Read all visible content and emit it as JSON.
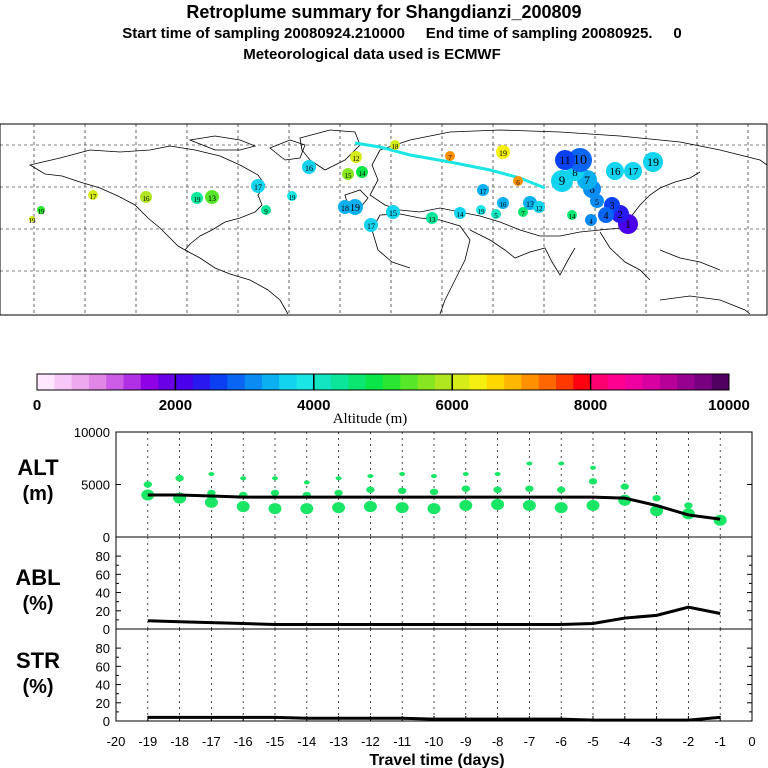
{
  "header": {
    "title": "Retroplume summary for Shangdianzi_200809",
    "sampling_line": "Start time of sampling 20080924.210000     End time of sampling 20080925.     0",
    "met_line": "Meteorological data used is ECMWF"
  },
  "map": {
    "panel_name": "retroplume-map",
    "plume_labels": [
      "1",
      "2",
      "3",
      "4",
      "5",
      "6",
      "7",
      "8",
      "9",
      "10",
      "11",
      "12",
      "13",
      "14",
      "15",
      "16",
      "17",
      "18",
      "19"
    ]
  },
  "colorbar": {
    "label": "Altitude (m)",
    "ticks": [
      "0",
      "2000",
      "4000",
      "6000",
      "8000",
      "10000"
    ],
    "colors": [
      "#ffe8ff",
      "#f7c8f7",
      "#eea8ee",
      "#e086e6",
      "#cc5be6",
      "#b030e6",
      "#9000e6",
      "#6a00e6",
      "#4a00ea",
      "#2a18f0",
      "#0a40f2",
      "#0a66f2",
      "#0a8cf2",
      "#0ab0f0",
      "#12d4ee",
      "#1ae6e6",
      "#12e6c0",
      "#0ae69a",
      "#0ae670",
      "#0ae648",
      "#2ae630",
      "#58e628",
      "#86e620",
      "#b0e620",
      "#d6ec18",
      "#f6f010",
      "#ffd800",
      "#ffb800",
      "#ff9000",
      "#ff6800",
      "#ff3800",
      "#ff0010",
      "#ff0070",
      "#ff0090",
      "#f000a0",
      "#d800a0",
      "#b80098",
      "#980090",
      "#780080",
      "#500060"
    ]
  },
  "chart_data": [
    {
      "type": "line",
      "panel": "ALT",
      "label_top": "ALT",
      "label_bottom": "(m)",
      "x": [
        -19,
        -18,
        -17,
        -16,
        -15,
        -14,
        -13,
        -12,
        -11,
        -10,
        -9,
        -8,
        -7,
        -6,
        -5,
        -4,
        -3,
        -2,
        -1
      ],
      "ylim": [
        0,
        10000
      ],
      "yticks": [
        "0",
        "5000",
        "10000"
      ],
      "series": [
        {
          "name": "mean altitude",
          "values": [
            4000,
            4000,
            3900,
            3800,
            3800,
            3800,
            3800,
            3800,
            3800,
            3800,
            3800,
            3800,
            3800,
            3800,
            3800,
            3700,
            3000,
            2100,
            1700
          ]
        }
      ],
      "clusters": [
        {
          "x": -19,
          "y": [
            4000,
            5000
          ]
        },
        {
          "x": -18,
          "y": [
            3700,
            5600
          ]
        },
        {
          "x": -17,
          "y": [
            3300,
            4200,
            6000
          ]
        },
        {
          "x": -16,
          "y": [
            2900,
            4000,
            5600
          ]
        },
        {
          "x": -15,
          "y": [
            2700,
            4200,
            5600
          ]
        },
        {
          "x": -14,
          "y": [
            2700,
            4000,
            5200
          ]
        },
        {
          "x": -13,
          "y": [
            2800,
            4200,
            5600
          ]
        },
        {
          "x": -12,
          "y": [
            2900,
            4500,
            5800
          ]
        },
        {
          "x": -11,
          "y": [
            2800,
            4400,
            6000
          ]
        },
        {
          "x": -10,
          "y": [
            2700,
            4300,
            5800
          ]
        },
        {
          "x": -9,
          "y": [
            3000,
            4600,
            6000
          ]
        },
        {
          "x": -8,
          "y": [
            3100,
            4500,
            6000
          ]
        },
        {
          "x": -7,
          "y": [
            3000,
            4600,
            7000
          ]
        },
        {
          "x": -6,
          "y": [
            2800,
            4500,
            7000
          ]
        },
        {
          "x": -5,
          "y": [
            3000,
            5300,
            6600
          ]
        },
        {
          "x": -4,
          "y": [
            3500,
            4800
          ]
        },
        {
          "x": -3,
          "y": [
            2500,
            3700
          ]
        },
        {
          "x": -2,
          "y": [
            2200,
            3000
          ]
        },
        {
          "x": -1,
          "y": [
            1600
          ]
        }
      ]
    },
    {
      "type": "line",
      "panel": "ABL",
      "label_top": "ABL",
      "label_bottom": "(%)",
      "x": [
        -19,
        -18,
        -17,
        -16,
        -15,
        -14,
        -13,
        -12,
        -11,
        -10,
        -9,
        -8,
        -7,
        -6,
        -5,
        -4,
        -3,
        -2,
        -1
      ],
      "ylim": [
        0,
        90
      ],
      "yticks": [
        "0",
        "20",
        "40",
        "60",
        "80"
      ],
      "series": [
        {
          "name": "ABL fraction",
          "values": [
            9,
            8,
            7,
            6,
            5,
            5,
            5,
            5,
            5,
            5,
            5,
            5,
            5,
            5,
            6,
            12,
            15,
            24,
            17
          ]
        }
      ]
    },
    {
      "type": "line",
      "panel": "STR",
      "label_top": "STR",
      "label_bottom": "(%)",
      "x": [
        -19,
        -18,
        -17,
        -16,
        -15,
        -14,
        -13,
        -12,
        -11,
        -10,
        -9,
        -8,
        -7,
        -6,
        -5,
        -4,
        -3,
        -2,
        -1
      ],
      "ylim": [
        0,
        90
      ],
      "yticks": [
        "0",
        "20",
        "40",
        "60",
        "80"
      ],
      "series": [
        {
          "name": "STR fraction",
          "values": [
            4,
            4,
            4,
            4,
            4,
            3,
            3,
            3,
            3,
            2,
            2,
            2,
            2,
            2,
            1,
            1,
            1,
            1,
            4
          ]
        }
      ]
    }
  ],
  "xaxis": {
    "ticks": [
      "-20",
      "-19",
      "-18",
      "-17",
      "-16",
      "-15",
      "-14",
      "-13",
      "-12",
      "-11",
      "-10",
      "-9",
      "-8",
      "-7",
      "-6",
      "-5",
      "-4",
      "-3",
      "-2",
      "-1",
      "0"
    ],
    "xlabel": "Travel time (days)"
  }
}
